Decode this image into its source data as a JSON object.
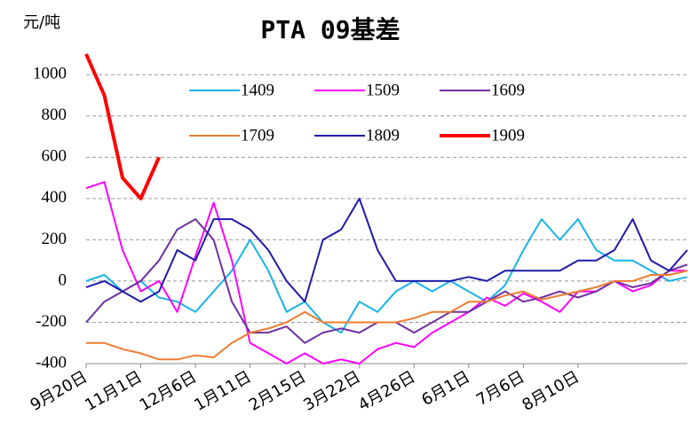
{
  "chart_data": {
    "type": "line",
    "title": "PTA 09基差",
    "y_label": "元/吨",
    "categories": [
      "9月20日",
      null,
      null,
      "11月1日",
      null,
      null,
      "12月6日",
      null,
      null,
      "1月11日",
      null,
      null,
      "2月15日",
      null,
      null,
      "3月22日",
      null,
      null,
      "4月26日",
      null,
      null,
      "6月1日",
      null,
      null,
      "7月6日",
      null,
      null,
      "8月10日",
      null,
      null,
      null,
      null,
      null,
      null
    ],
    "ylim": [
      -400,
      1100
    ],
    "yticks": [
      -400,
      -200,
      0,
      200,
      400,
      600,
      800,
      1000
    ],
    "grid": true,
    "series": [
      {
        "name": "1409",
        "color": "#1ab2e8",
        "width": 2,
        "values": [
          0,
          30,
          -50,
          0,
          -80,
          -100,
          -150,
          -50,
          50,
          200,
          50,
          -150,
          -100,
          -200,
          -250,
          -100,
          -150,
          -50,
          0,
          -50,
          0,
          -50,
          -100,
          -20,
          150,
          300,
          200,
          300,
          150,
          100,
          100,
          50,
          0,
          20
        ]
      },
      {
        "name": "1509",
        "color": "#ff00ff",
        "width": 2,
        "values": [
          450,
          480,
          150,
          -50,
          0,
          -150,
          120,
          380,
          100,
          -300,
          -350,
          -400,
          -350,
          -400,
          -380,
          -400,
          -330,
          -300,
          -320,
          -250,
          -200,
          -150,
          -80,
          -120,
          -60,
          -100,
          -150,
          -50,
          -50,
          0,
          -50,
          -20,
          50,
          50
        ]
      },
      {
        "name": "1609",
        "color": "#7030a0",
        "width": 2,
        "values": [
          -200,
          -100,
          -50,
          0,
          100,
          250,
          300,
          200,
          -100,
          -250,
          -250,
          -220,
          -300,
          -250,
          -230,
          -250,
          -200,
          -200,
          -250,
          -200,
          -150,
          -150,
          -100,
          -50,
          -100,
          -80,
          -50,
          -80,
          -50,
          0,
          -30,
          -10,
          50,
          80
        ]
      },
      {
        "name": "1709",
        "color": "#ed7d31",
        "width": 2,
        "values": [
          -300,
          -300,
          -330,
          -350,
          -380,
          -380,
          -360,
          -370,
          -300,
          -250,
          -230,
          -200,
          -150,
          -200,
          -200,
          -200,
          -200,
          -200,
          -180,
          -150,
          -150,
          -100,
          -100,
          -70,
          -50,
          -90,
          -70,
          -50,
          -30,
          0,
          0,
          30,
          30,
          50
        ]
      },
      {
        "name": "1809",
        "color": "#1f1aa8",
        "width": 2,
        "values": [
          -30,
          0,
          -50,
          -100,
          -50,
          150,
          100,
          300,
          300,
          250,
          150,
          0,
          -100,
          200,
          250,
          400,
          150,
          0,
          0,
          0,
          0,
          20,
          0,
          50,
          50,
          50,
          50,
          100,
          100,
          150,
          300,
          100,
          50,
          150
        ]
      },
      {
        "name": "1909",
        "color": "#ff0000",
        "width": 4,
        "values": [
          1100,
          900,
          500,
          400,
          600,
          null,
          null,
          null,
          null,
          null,
          null,
          null,
          null,
          null,
          null,
          null,
          null,
          null,
          null,
          null,
          null,
          null,
          null,
          null,
          null,
          null,
          null,
          null,
          null,
          null,
          null,
          null,
          null,
          null
        ]
      }
    ]
  }
}
